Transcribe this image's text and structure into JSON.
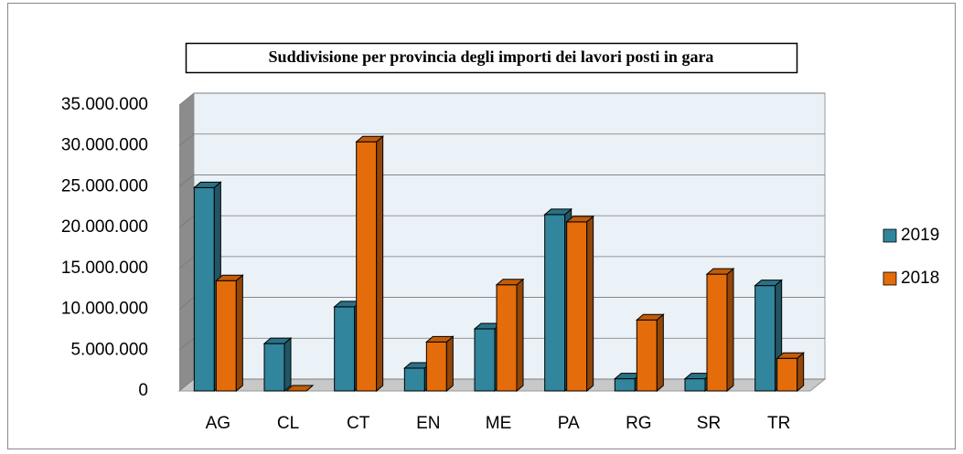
{
  "chart_data": {
    "type": "bar3d",
    "title": "Suddivisione per provincia degli importi dei lavori posti in gara",
    "categories": [
      "AG",
      "CL",
      "CT",
      "EN",
      "ME",
      "PA",
      "RG",
      "SR",
      "TR"
    ],
    "series": [
      {
        "name": "2019",
        "color": "#31859c",
        "values": [
          24900000,
          5800000,
          10300000,
          2800000,
          7600000,
          21600000,
          1500000,
          1500000,
          12900000
        ]
      },
      {
        "name": "2018",
        "color": "#e46c0a",
        "values": [
          13500000,
          0,
          30500000,
          6000000,
          13000000,
          20700000,
          8700000,
          14300000,
          4000000
        ]
      }
    ],
    "ylim": [
      0,
      35000000
    ],
    "yticks": [
      0,
      {
        "value": 5000000,
        "label": "5.000.000"
      },
      {
        "value": 10000000,
        "label": "10.000.000"
      },
      {
        "value": 15000000,
        "label": "15.000.000"
      },
      {
        "value": 20000000,
        "label": "20.000.000"
      },
      {
        "value": 25000000,
        "label": "25.000.000"
      },
      {
        "value": 30000000,
        "label": "30.000.000"
      },
      {
        "value": 35000000,
        "label": "35.000.000"
      }
    ],
    "grid": true,
    "legend": "right"
  }
}
